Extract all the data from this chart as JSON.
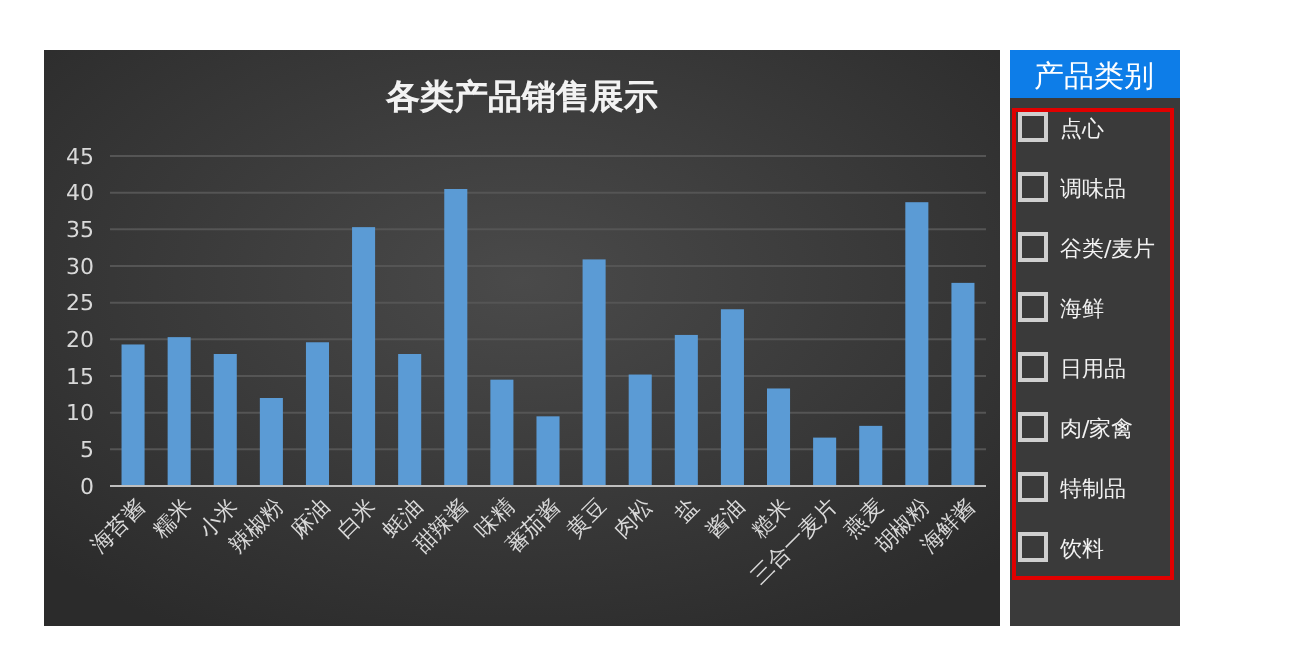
{
  "chart_data": {
    "type": "bar",
    "title": "各类产品销售展示",
    "categories": [
      "海苔酱",
      "糯米",
      "小米",
      "辣椒粉",
      "麻油",
      "白米",
      "蚝油",
      "甜辣酱",
      "味精",
      "蕃茄酱",
      "黄豆",
      "肉松",
      "盐",
      "酱油",
      "糙米",
      "三合一麦片",
      "燕麦",
      "胡椒粉",
      "海鲜酱"
    ],
    "values": [
      19.3,
      20.3,
      18,
      12,
      19.6,
      35.3,
      18,
      40.5,
      14.5,
      9.5,
      30.9,
      15.2,
      20.6,
      24.1,
      13.3,
      6.6,
      8.2,
      38.7,
      27.7
    ],
    "color": "#5b9bd5",
    "ylim": [
      0,
      45
    ],
    "yticks": [
      0,
      5,
      10,
      15,
      20,
      25,
      30,
      35,
      40,
      45
    ],
    "grid": "y",
    "annotations": [
      "产品类别",
      "点心",
      "调味品",
      "谷类/麦片",
      "海鲜",
      "日用品",
      "肉/家禽",
      "特制品",
      "饮料"
    ]
  }
}
